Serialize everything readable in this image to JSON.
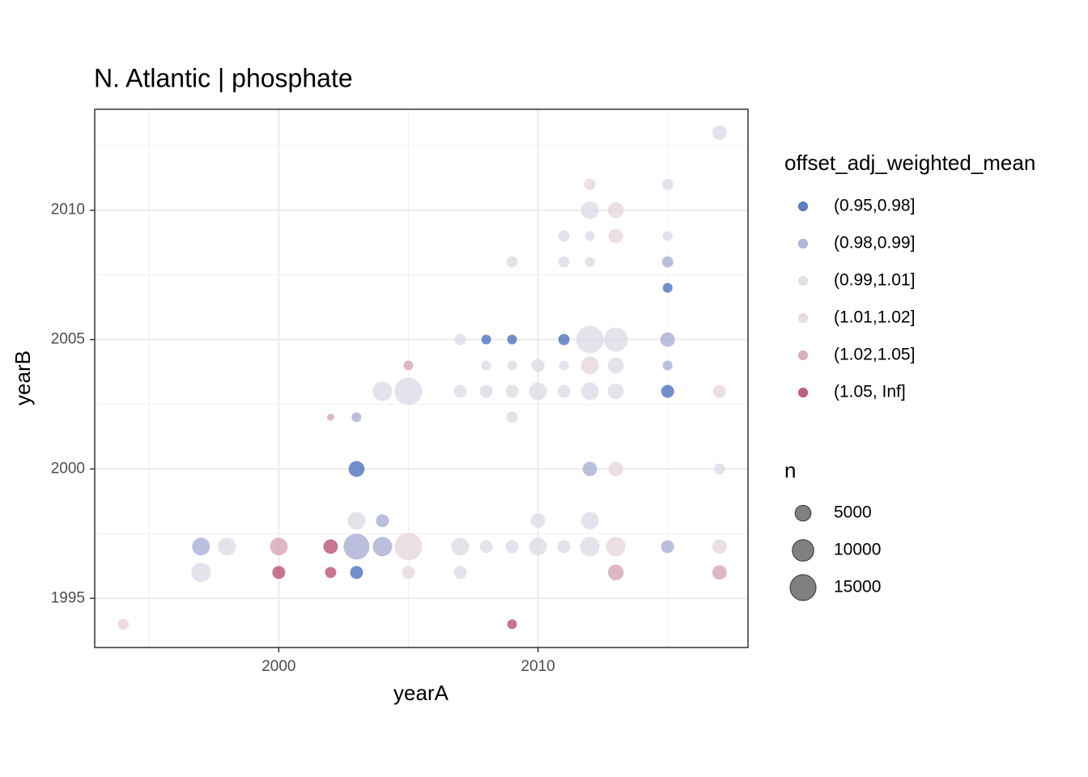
{
  "chart_data": {
    "type": "scatter",
    "title": "N. Atlantic | phosphate",
    "xlabel": "yearA",
    "ylabel": "yearB",
    "xlim": [
      1992.9,
      2018.1
    ],
    "ylim": [
      1993.1,
      2013.9
    ],
    "xticks": [
      2000,
      2010
    ],
    "yticks": [
      1995,
      2000,
      2005,
      2010
    ],
    "x_minor_ticks": [
      1995,
      2005,
      2015
    ],
    "y_minor_ticks": [
      1997.5,
      2002.5,
      2007.5,
      2012.5
    ],
    "grid": true,
    "legend_title": "offset_adj_weighted_mean",
    "size_legend": {
      "title": "n",
      "values": [
        5000,
        10000,
        15000
      ]
    },
    "series": [
      {
        "name": "(0.95,0.98]",
        "color": "#4169b8",
        "x": [
          2015,
          2008,
          2009,
          2011,
          2015,
          2003,
          2003
        ],
        "y": [
          2007,
          2005,
          2005,
          2005,
          2003,
          2000,
          1996
        ],
        "size": [
          1250,
          1250,
          1250,
          2000,
          3000,
          5000,
          3000
        ]
      },
      {
        "name": "(0.98,0.99]",
        "color": "#a3aad2",
        "x": [
          2015,
          2015,
          2015,
          2003,
          2012,
          2004,
          1997,
          2003,
          2004,
          2015
        ],
        "y": [
          2008,
          2005,
          2004,
          2002,
          2000,
          1998,
          1997,
          1997,
          1997,
          1997
        ],
        "size": [
          2000,
          4000,
          1250,
          1250,
          4000,
          3000,
          6500,
          15000,
          8000,
          3000
        ]
      },
      {
        "name": "(0.99,1.01]",
        "color": "#d9dae6",
        "x": [
          2017,
          2015,
          2012,
          2011,
          2012,
          2015,
          2009,
          2011,
          2012,
          2007,
          2012,
          2013,
          2008,
          2009,
          2010,
          2011,
          2013,
          2004,
          2005,
          2007,
          2008,
          2009,
          2010,
          2011,
          2012,
          2013,
          2009,
          2017,
          2003,
          2010,
          2012,
          1998,
          2007,
          2008,
          2009,
          2010,
          2011,
          2012,
          1997,
          2007
        ],
        "y": [
          2013,
          2011,
          2010,
          2009,
          2009,
          2009,
          2008,
          2008,
          2008,
          2005,
          2005,
          2005,
          2004,
          2004,
          2004,
          2004,
          2004,
          2003,
          2003,
          2003,
          2003,
          2003,
          2003,
          2003,
          2003,
          2003,
          2002,
          2000,
          1998,
          1998,
          1998,
          1997,
          1997,
          1997,
          1997,
          1997,
          1997,
          1997,
          1996,
          1996
        ],
        "size": [
          4000,
          2000,
          6500,
          2000,
          1250,
          1250,
          2000,
          2000,
          1250,
          2000,
          17000,
          13000,
          1250,
          1250,
          3000,
          1250,
          5000,
          8000,
          17000,
          3000,
          3000,
          3000,
          6500,
          3000,
          6500,
          5000,
          2000,
          2000,
          6500,
          4000,
          6500,
          6500,
          6500,
          3000,
          3000,
          6500,
          3000,
          8000,
          8000,
          3000
        ]
      },
      {
        "name": "(1.01,1.02]",
        "color": "#e6d4d8",
        "x": [
          2012,
          2013,
          2013,
          2012,
          2017,
          2013,
          2005,
          2013,
          2017,
          2005,
          1994
        ],
        "y": [
          2011,
          2010,
          2009,
          2004,
          2003,
          2000,
          1997,
          1997,
          1997,
          1996,
          1994
        ],
        "size": [
          2000,
          5000,
          4000,
          6500,
          3000,
          4000,
          17000,
          8000,
          4000,
          3000,
          2000
        ]
      },
      {
        "name": "(1.02,1.05]",
        "color": "#d3a2b0",
        "x": [
          2005,
          2002,
          2000,
          2013,
          2017
        ],
        "y": [
          2004,
          2002,
          1997,
          1996,
          1996
        ],
        "size": [
          1250,
          200,
          6500,
          5000,
          4000
        ]
      },
      {
        "name": "(1.05, Inf]",
        "color": "#b4476f",
        "x": [
          2002,
          2000,
          2002,
          2009
        ],
        "y": [
          1997,
          1996,
          1996,
          1994
        ],
        "size": [
          4000,
          3000,
          2000,
          1250
        ]
      }
    ]
  }
}
